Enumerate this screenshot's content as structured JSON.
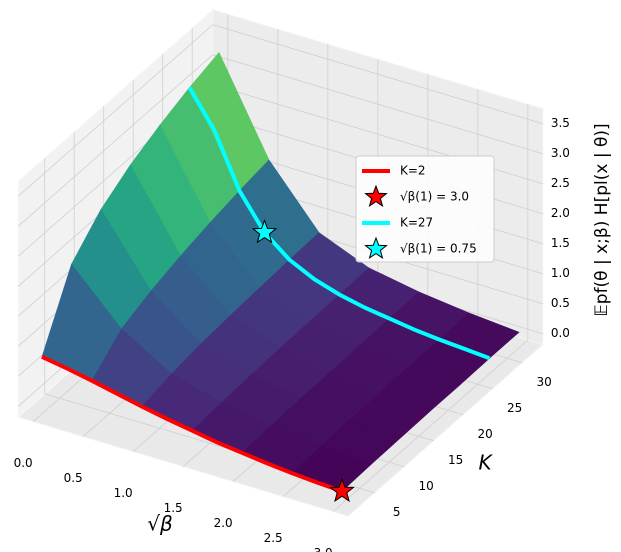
{
  "chart_data": {
    "type": "surface3d",
    "xlabel": "√β",
    "ylabel": "K",
    "zlabel": "𝔼pf(θ | x;β) H[pl(x | θ)]",
    "xlim": [
      -0.15,
      3.15
    ],
    "ylim": [
      0.5,
      33.5
    ],
    "zlim": [
      -0.18,
      3.75
    ],
    "xticks": [
      {
        "value": 0,
        "label": "0.0"
      },
      {
        "value": 0.5,
        "label": "0.5"
      },
      {
        "value": 1,
        "label": "1.0"
      },
      {
        "value": 1.5,
        "label": "1.5"
      },
      {
        "value": 2,
        "label": "2.0"
      },
      {
        "value": 2.5,
        "label": "2.5"
      },
      {
        "value": 3,
        "label": "3.0"
      }
    ],
    "yticks": [
      5,
      10,
      15,
      20,
      25,
      30
    ],
    "zticks": [
      {
        "value": 0,
        "label": "0.0"
      },
      {
        "value": 0.5,
        "label": "0.5"
      },
      {
        "value": 1,
        "label": "1.0"
      },
      {
        "value": 1.5,
        "label": "1.5"
      },
      {
        "value": 2,
        "label": "2.0"
      },
      {
        "value": 2.5,
        "label": "2.5"
      },
      {
        "value": 3,
        "label": "3.0"
      },
      {
        "value": 3.5,
        "label": "3.5"
      }
    ],
    "grid": true,
    "surface": {
      "x": [
        0,
        0.5,
        1,
        1.5,
        2,
        2.5,
        3
      ],
      "K": [
        2,
        7,
        12,
        17,
        22,
        27,
        32
      ],
      "z": [
        [
          0.77,
          0.62,
          0.44,
          0.29,
          0.17,
          0.08,
          0.03
        ],
        [
          1.88,
          1.05,
          0.55,
          0.32,
          0.19,
          0.1,
          0.05
        ],
        [
          2.36,
          1.25,
          0.62,
          0.35,
          0.21,
          0.12,
          0.06
        ],
        [
          2.67,
          1.4,
          0.66,
          0.37,
          0.22,
          0.13,
          0.07
        ],
        [
          2.9,
          1.52,
          0.69,
          0.38,
          0.23,
          0.14,
          0.07
        ],
        [
          3.09,
          1.62,
          0.72,
          0.39,
          0.24,
          0.14,
          0.08
        ],
        [
          3.24,
          1.7,
          0.74,
          0.4,
          0.25,
          0.15,
          0.08
        ]
      ]
    },
    "series": [
      {
        "name": "K=2",
        "color": "#ff0000",
        "K": 2,
        "x": [
          0,
          0.25,
          0.5,
          0.75,
          1,
          1.25,
          1.5,
          1.75,
          2,
          2.25,
          2.5,
          2.75,
          3
        ],
        "z": [
          0.77,
          0.7,
          0.62,
          0.53,
          0.44,
          0.36,
          0.29,
          0.22,
          0.17,
          0.12,
          0.08,
          0.05,
          0.03
        ]
      },
      {
        "name": "K=27",
        "color": "#00ffff",
        "K": 27,
        "x": [
          0,
          0.25,
          0.5,
          0.75,
          1,
          1.25,
          1.5,
          1.75,
          2,
          2.25,
          2.5,
          2.75,
          3
        ],
        "z": [
          3.09,
          2.5,
          1.62,
          1.05,
          0.72,
          0.52,
          0.39,
          0.3,
          0.24,
          0.18,
          0.14,
          0.11,
          0.08
        ]
      }
    ],
    "points": [
      {
        "name": "√β(1) = 3.0",
        "color": "#ff0000",
        "x": 3,
        "K": 2,
        "z": 0.03
      },
      {
        "name": "√β(1) = 0.75",
        "color": "#00ffff",
        "x": 0.75,
        "K": 27,
        "z": 1.05
      }
    ]
  }
}
